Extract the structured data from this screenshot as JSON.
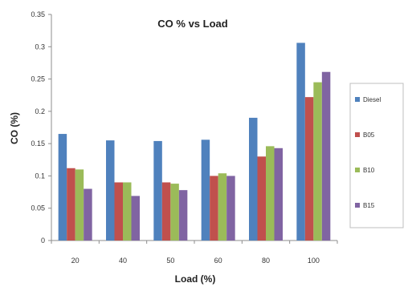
{
  "chart_data": {
    "type": "bar",
    "title": "CO % vs Load",
    "xlabel": "Load (%)",
    "ylabel": "CO (%)",
    "categories": [
      "20",
      "40",
      "50",
      "60",
      "80",
      "100"
    ],
    "series": [
      {
        "name": "Diesel",
        "color": "#4f81bd",
        "values": [
          0.165,
          0.155,
          0.154,
          0.156,
          0.19,
          0.306
        ]
      },
      {
        "name": "B05",
        "color": "#c0504d",
        "values": [
          0.112,
          0.09,
          0.09,
          0.1,
          0.13,
          0.222
        ]
      },
      {
        "name": "B10",
        "color": "#9bbb59",
        "values": [
          0.11,
          0.09,
          0.088,
          0.104,
          0.146,
          0.245
        ]
      },
      {
        "name": "B15",
        "color": "#8064a2",
        "values": [
          0.08,
          0.069,
          0.078,
          0.1,
          0.143,
          0.261
        ]
      }
    ],
    "ylim": [
      0,
      0.35
    ],
    "yticks": [
      "0",
      "0.05",
      "0.1",
      "0.15",
      "0.2",
      "0.25",
      "0.3",
      "0.35"
    ],
    "grid": false,
    "legend_position": "right"
  }
}
